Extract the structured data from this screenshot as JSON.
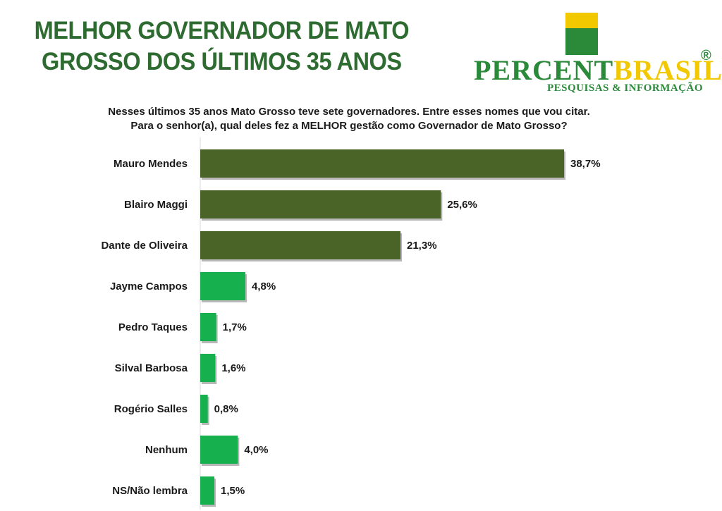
{
  "header": {
    "title_line1": "MELHOR GOVERNADOR DE MATO",
    "title_line2": "GROSSO DOS ÚLTIMOS 35 ANOS"
  },
  "logo": {
    "name_part1": "PERCENT",
    "name_part2": "BRASIL",
    "registered": "®",
    "tagline": "PESQUISAS & INFORMAÇÃO"
  },
  "question": {
    "line1": "Nesses últimos 35 anos Mato Grosso teve sete governadores. Entre esses nomes que vou citar.",
    "line2": "Para o senhor(a), qual deles fez a MELHOR gestão como Governador de Mato Grosso?"
  },
  "colors": {
    "title": "#2e6b30",
    "dark_bar": "#4a6428",
    "light_bar": "#16b04f",
    "logo_green": "#2a8a3a",
    "logo_yellow": "#f2c800"
  },
  "chart_data": {
    "type": "bar",
    "orientation": "horizontal",
    "categories": [
      "Mauro Mendes",
      "Blairo Maggi",
      "Dante de Oliveira",
      "Jayme Campos",
      "Pedro Taques",
      "Silval Barbosa",
      "Rogério Salles",
      "Nenhum",
      "NS/Não lembra"
    ],
    "values": [
      38.7,
      25.6,
      21.3,
      4.8,
      1.7,
      1.6,
      0.8,
      4.0,
      1.5
    ],
    "labels": [
      "38,7%",
      "25,6%",
      "21,3%",
      "4,8%",
      "1,7%",
      "1,6%",
      "0,8%",
      "4,0%",
      "1,5%"
    ],
    "bar_colors": [
      "#4a6428",
      "#4a6428",
      "#4a6428",
      "#16b04f",
      "#16b04f",
      "#16b04f",
      "#16b04f",
      "#16b04f",
      "#16b04f"
    ],
    "xlim": [
      0,
      38.7
    ],
    "grid": false,
    "legend": "none"
  }
}
